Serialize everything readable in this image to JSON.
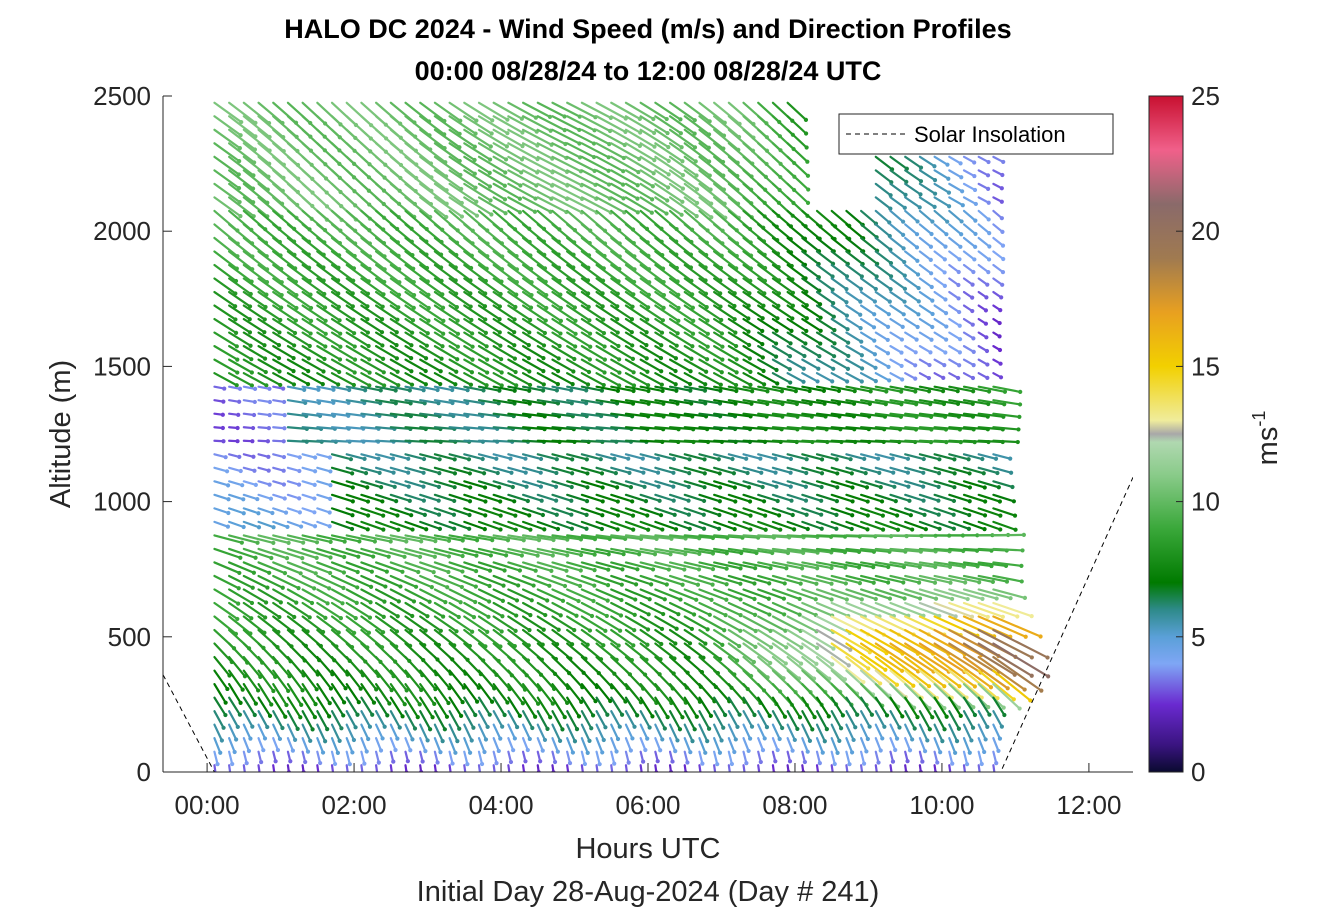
{
  "chart_data": {
    "type": "quiver",
    "title": "HALO DC 2024 - Wind Speed (m/s) and Direction Profiles",
    "subtitle": "00:00 08/28/24 to 12:00 08/28/24  UTC",
    "xlabel": "Hours UTC",
    "xlabel2": "Initial Day 28-Aug-2024 (Day # 241)",
    "ylabel": "Altitude (m)",
    "xlim": [
      -0.6,
      12.6
    ],
    "ylim": [
      0,
      2500
    ],
    "x_ticks": [
      0,
      2,
      4,
      6,
      8,
      10,
      12
    ],
    "x_tick_labels": [
      "00:00",
      "02:00",
      "04:00",
      "06:00",
      "08:00",
      "10:00",
      "12:00"
    ],
    "y_ticks": [
      0,
      500,
      1000,
      1500,
      2000,
      2500
    ],
    "y_tick_labels": [
      "0",
      "500",
      "1000",
      "1500",
      "2000",
      "2500"
    ],
    "profile_time_range_hours": [
      0.1,
      10.8
    ],
    "profile_interval_hours": 0.2,
    "altitude_step_m": 50,
    "colorbar": {
      "label": "ms",
      "label_superscript": "-1",
      "clim": [
        0,
        25
      ],
      "ticks": [
        0,
        5,
        10,
        15,
        20,
        25
      ],
      "tick_labels": [
        "0",
        "5",
        "10",
        "15",
        "20",
        "25"
      ],
      "colors": [
        {
          "v": 0.0,
          "c": "#0a0a30"
        },
        {
          "v": 1.0,
          "c": "#3a1480"
        },
        {
          "v": 2.5,
          "c": "#6a2ad0"
        },
        {
          "v": 4.0,
          "c": "#7fa6f5"
        },
        {
          "v": 5.0,
          "c": "#5aa0d8"
        },
        {
          "v": 6.0,
          "c": "#2e8a8a"
        },
        {
          "v": 7.0,
          "c": "#007a00"
        },
        {
          "v": 9.0,
          "c": "#3aa83a"
        },
        {
          "v": 11.0,
          "c": "#8acb8a"
        },
        {
          "v": 12.2,
          "c": "#b0d8b0"
        },
        {
          "v": 12.5,
          "c": "#a8a8a8"
        },
        {
          "v": 13.0,
          "c": "#f0ec9c"
        },
        {
          "v": 15.0,
          "c": "#f2d000"
        },
        {
          "v": 17.0,
          "c": "#e8a020"
        },
        {
          "v": 19.0,
          "c": "#a07a50"
        },
        {
          "v": 21.0,
          "c": "#8a6a6a"
        },
        {
          "v": 23.0,
          "c": "#f0608a"
        },
        {
          "v": 25.0,
          "c": "#c81030"
        }
      ]
    },
    "legend": {
      "position": "top-right",
      "entries": [
        {
          "label": "Solar Insolation",
          "style": "dashed",
          "color": "#000000"
        }
      ]
    },
    "solar_insolation": {
      "x": [
        -0.6,
        0.1,
        10.8,
        12.6
      ],
      "y": [
        360,
        0,
        0,
        1090
      ]
    },
    "data_gaps": [
      {
        "x_range": [
          8.0,
          10.8
        ],
        "y_range": [
          2300,
          2500
        ]
      },
      {
        "x_range": [
          8.0,
          9.0
        ],
        "y_range": [
          2080,
          2500
        ]
      }
    ]
  }
}
